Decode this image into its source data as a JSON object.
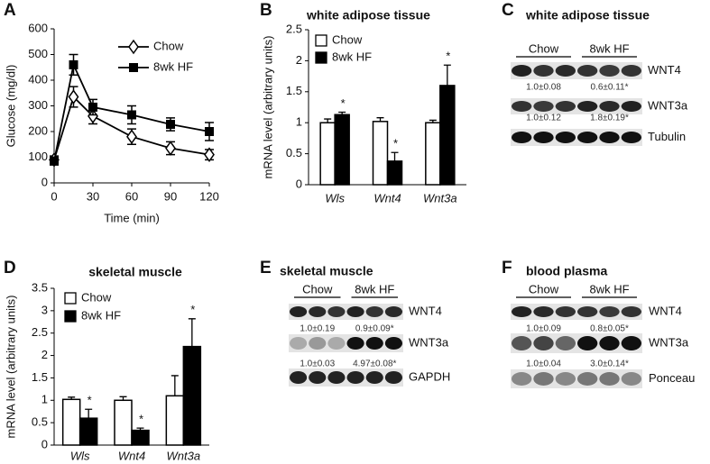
{
  "chart_data": [
    {
      "type": "line",
      "panel": "A",
      "xlabel": "Time (min)",
      "ylabel": "Glucose (mg/dl)",
      "x": [
        0,
        15,
        30,
        60,
        90,
        120
      ],
      "xlim": [
        0,
        120
      ],
      "xticks": [
        0,
        30,
        60,
        90,
        120
      ],
      "ylim": [
        0,
        600
      ],
      "yticks": [
        0,
        100,
        200,
        300,
        400,
        500,
        600
      ],
      "series": [
        {
          "name": "Chow",
          "color": "#000000",
          "marker": "diamond-open",
          "values": [
            90,
            335,
            260,
            180,
            135,
            110
          ],
          "errors": [
            15,
            40,
            30,
            30,
            25,
            20
          ]
        },
        {
          "name": "8wk HF",
          "color": "#000000",
          "marker": "square",
          "values": [
            85,
            460,
            295,
            265,
            228,
            200
          ],
          "errors": [
            15,
            40,
            30,
            35,
            25,
            35
          ]
        }
      ]
    },
    {
      "type": "bar",
      "panel": "B",
      "title": "white adipose tissue",
      "ylabel": "mRNA level (arbitrary units)",
      "categories": [
        "Wls",
        "Wnt4",
        "Wnt3a"
      ],
      "ylim": [
        0,
        2.5
      ],
      "yticks": [
        0,
        0.5,
        1,
        1.5,
        2,
        2.5
      ],
      "series": [
        {
          "name": "Chow",
          "color": "#ffffff",
          "values": [
            1.0,
            1.02,
            1.0
          ],
          "errors": [
            0.06,
            0.06,
            0.04
          ]
        },
        {
          "name": "8wk HF",
          "color": "#000000",
          "values": [
            1.13,
            0.38,
            1.6
          ],
          "errors": [
            0.04,
            0.14,
            0.33
          ]
        }
      ],
      "annotations": [
        "*",
        "*",
        "*"
      ]
    },
    {
      "type": "bar",
      "panel": "D",
      "title": "skeletal muscle",
      "ylabel": "mRNA level (arbitrary units)",
      "categories": [
        "Wls",
        "Wnt4",
        "Wnt3a"
      ],
      "ylim": [
        0,
        3.5
      ],
      "yticks": [
        0,
        0.5,
        1,
        1.5,
        2,
        2.5,
        3,
        3.5
      ],
      "series": [
        {
          "name": "Chow",
          "color": "#ffffff",
          "values": [
            1.02,
            1.0,
            1.1
          ],
          "errors": [
            0.05,
            0.08,
            0.45
          ]
        },
        {
          "name": "8wk HF",
          "color": "#000000",
          "values": [
            0.6,
            0.33,
            2.2
          ],
          "errors": [
            0.2,
            0.05,
            0.62
          ]
        }
      ],
      "annotations": [
        "*",
        "*",
        "*"
      ]
    }
  ],
  "blots": [
    {
      "panel": "C",
      "title": "white adipose tissue",
      "groups": [
        "Chow",
        "8wk HF"
      ],
      "rows": [
        {
          "label": "WNT4",
          "quant": [
            "1.0±0.08",
            "0.6±0.11*"
          ]
        },
        {
          "label": "WNT3a",
          "quant": [
            "1.0±0.12",
            "1.8±0.19*"
          ]
        },
        {
          "label": "Tubulin"
        }
      ]
    },
    {
      "panel": "E",
      "title": "skeletal muscle",
      "groups": [
        "Chow",
        "8wk HF"
      ],
      "rows": [
        {
          "label": "WNT4",
          "quant": [
            "1.0±0.19",
            "0.9±0.09*"
          ]
        },
        {
          "label": "WNT3a",
          "quant": [
            "1.0±0.03",
            "4.97±0.08*"
          ]
        },
        {
          "label": "GAPDH"
        }
      ]
    },
    {
      "panel": "F",
      "title": "blood plasma",
      "groups": [
        "Chow",
        "8wk HF"
      ],
      "rows": [
        {
          "label": "WNT4",
          "quant": [
            "1.0±0.09",
            "0.8±0.05*"
          ]
        },
        {
          "label": "WNT3a",
          "quant": [
            "1.0±0.04",
            "3.0±0.14*"
          ]
        },
        {
          "label": "Ponceau"
        }
      ]
    }
  ]
}
